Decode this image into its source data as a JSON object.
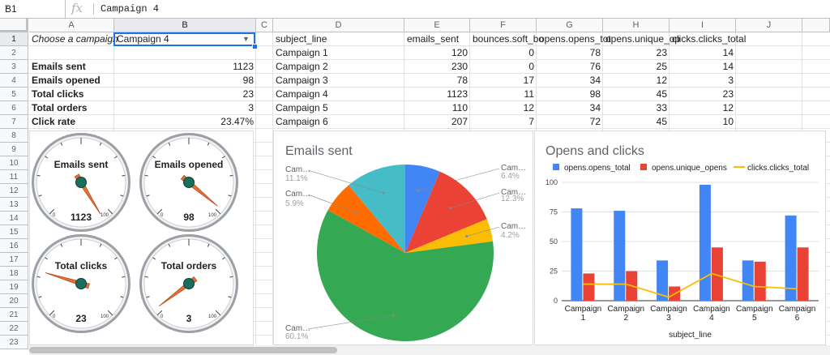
{
  "formula_bar": {
    "cell_ref": "B1",
    "fx": "fx",
    "value": "Campaign 4"
  },
  "columns": [
    "A",
    "B",
    "C",
    "D",
    "E",
    "F",
    "G",
    "H",
    "I",
    "J"
  ],
  "rows": [
    "1",
    "2",
    "3",
    "4",
    "5",
    "6",
    "7",
    "8",
    "9",
    "10",
    "11",
    "12",
    "13",
    "14",
    "15",
    "16",
    "17",
    "18",
    "19",
    "20",
    "21",
    "22",
    "23"
  ],
  "summary": {
    "choose_label": "Choose a campaign",
    "selected": "Campaign 4",
    "metrics": [
      {
        "label": "Emails sent",
        "value": "1123"
      },
      {
        "label": "Emails opened",
        "value": "98"
      },
      {
        "label": "Total clicks",
        "value": "23"
      },
      {
        "label": "Total orders",
        "value": "3"
      },
      {
        "label": "Click rate",
        "value": "23.47%"
      }
    ]
  },
  "table": {
    "headers": [
      "subject_line",
      "emails_sent",
      "bounces.soft_bo",
      "opens.opens_tot",
      "opens.unique_op",
      "clicks.clicks_total"
    ],
    "rows": [
      [
        "Campaign 1",
        "120",
        "0",
        "78",
        "23",
        "14"
      ],
      [
        "Campaign 2",
        "230",
        "0",
        "76",
        "25",
        "14"
      ],
      [
        "Campaign 3",
        "78",
        "17",
        "34",
        "12",
        "3"
      ],
      [
        "Campaign 4",
        "1123",
        "11",
        "98",
        "45",
        "23"
      ],
      [
        "Campaign 5",
        "110",
        "12",
        "34",
        "33",
        "12"
      ],
      [
        "Campaign 6",
        "207",
        "7",
        "72",
        "45",
        "10"
      ]
    ]
  },
  "gauges": [
    {
      "title": "Emails sent",
      "value": "1123",
      "needle": 1123,
      "max": 100,
      "min_label": "0",
      "max_label": "100"
    },
    {
      "title": "Emails opened",
      "value": "98",
      "needle": 98,
      "max": 100,
      "min_label": "0",
      "max_label": "100"
    },
    {
      "title": "Total clicks",
      "value": "23",
      "needle": 23,
      "max": 100,
      "min_label": "0",
      "max_label": "100"
    },
    {
      "title": "Total orders",
      "value": "3",
      "needle": 3,
      "max": 100,
      "min_label": "0",
      "max_label": "100"
    }
  ],
  "chart_data": [
    {
      "type": "pie",
      "title": "Emails sent",
      "colors": [
        "#4285f4",
        "#ea4335",
        "#fbbc04",
        "#34a853",
        "#ff6d01",
        "#46bdc6"
      ],
      "slices": [
        {
          "name": "Campaign 1",
          "value": 120,
          "label": "Cam…",
          "pct": "6.4%"
        },
        {
          "name": "Campaign 2",
          "value": 230,
          "label": "Cam…",
          "pct": "12.3%"
        },
        {
          "name": "Campaign 3",
          "value": 78,
          "label": "Cam…",
          "pct": "4.2%"
        },
        {
          "name": "Campaign 4",
          "value": 1123,
          "label": "Cam…",
          "pct": "60.1%"
        },
        {
          "name": "Campaign 5",
          "value": 110,
          "label": "Cam…",
          "pct": "5.9%"
        },
        {
          "name": "Campaign 6",
          "value": 207,
          "label": "Cam…",
          "pct": "11.1%"
        }
      ]
    },
    {
      "type": "bar",
      "title": "Opens and clicks",
      "xlabel": "subject_line",
      "categories": [
        [
          "Campaign",
          "1"
        ],
        [
          "Campaign",
          "2"
        ],
        [
          "Campaign",
          "3"
        ],
        [
          "Campaign",
          "4"
        ],
        [
          "Campaign",
          "5"
        ],
        [
          "Campaign",
          "6"
        ]
      ],
      "ylim": [
        0,
        100
      ],
      "yticks": [
        "0",
        "25",
        "50",
        "75",
        "100"
      ],
      "series": [
        {
          "name": "opens.opens_total",
          "type": "bar",
          "color": "#4285f4",
          "values": [
            78,
            76,
            34,
            98,
            34,
            72
          ]
        },
        {
          "name": "opens.unique_opens",
          "type": "bar",
          "color": "#ea4335",
          "values": [
            23,
            25,
            12,
            45,
            33,
            45
          ]
        },
        {
          "name": "clicks.clicks_total",
          "type": "line",
          "color": "#fbbc04",
          "values": [
            14,
            14,
            3,
            23,
            12,
            10
          ]
        }
      ]
    }
  ]
}
